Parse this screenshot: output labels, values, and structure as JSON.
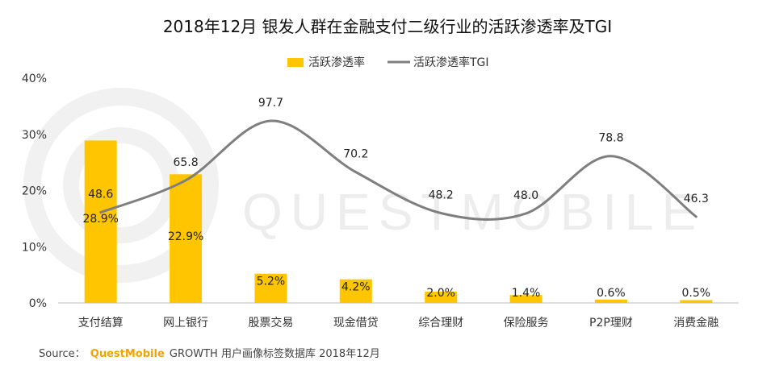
{
  "chart_data": {
    "type": "bar",
    "title": "2018年12月 银发人群在金融支付二级行业的活跃渗透率及TGI",
    "categories": [
      "支付结算",
      "网上银行",
      "股票交易",
      "现金借贷",
      "综合理财",
      "保险服务",
      "P2P理财",
      "消费金融"
    ],
    "series": [
      {
        "name": "活跃渗透率",
        "type": "bar",
        "color": "#FFC600",
        "values": [
          28.9,
          22.9,
          5.2,
          4.2,
          2.0,
          1.4,
          0.6,
          0.5
        ],
        "labels": [
          "28.9%",
          "22.9%",
          "5.2%",
          "4.2%",
          "2.0%",
          "1.4%",
          "0.6%",
          "0.5%"
        ]
      },
      {
        "name": "活跃渗透率TGI",
        "type": "line",
        "color": "#7f7f7f",
        "smooth": true,
        "values": [
          48.6,
          65.8,
          97.7,
          70.2,
          48.2,
          48.0,
          78.8,
          46.3
        ],
        "labels": [
          "48.6",
          "65.8",
          "97.7",
          "70.2",
          "48.2",
          "48.0",
          "78.8",
          "46.3"
        ]
      }
    ],
    "yaxis": {
      "range": [
        0,
        40
      ],
      "ticks": [
        "0%",
        "10%",
        "20%",
        "30%",
        "40%"
      ]
    },
    "legend_position": "top-center",
    "grid": false
  },
  "watermark": {
    "text": "QUESTMOBILE"
  },
  "footer": {
    "source_prefix": "Source：",
    "brand": "QuestMobile",
    "brand_sub": "GROWTH",
    "source_rest": "用户画像标签数据库 2018年12月"
  }
}
